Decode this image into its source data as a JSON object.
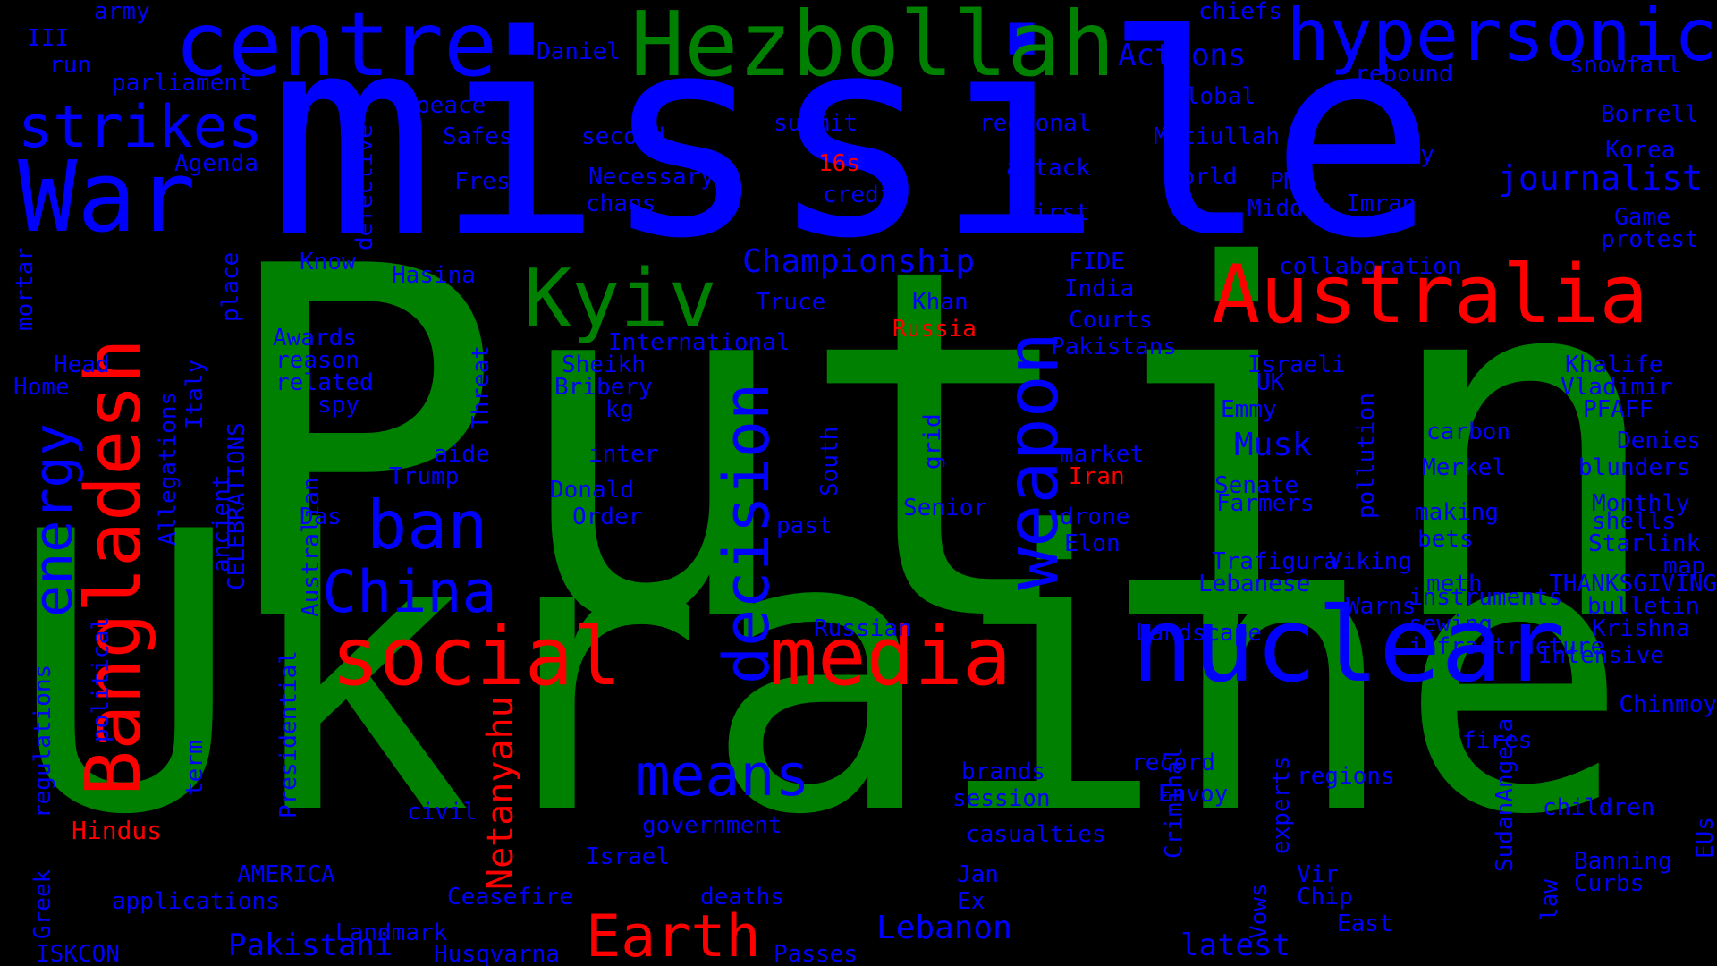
{
  "colors": {
    "blue": "#0000ff",
    "green": "#008000",
    "red": "#ff0000",
    "background": "#000000"
  },
  "words": [
    {
      "text": "Putin",
      "color": "green"
    },
    {
      "text": "Ukraine",
      "color": "green"
    },
    {
      "text": "missile",
      "color": "blue"
    },
    {
      "text": "Hezbollah",
      "color": "green"
    },
    {
      "text": "centre",
      "color": "blue"
    },
    {
      "text": "hypersonic",
      "color": "blue"
    },
    {
      "text": "War",
      "color": "blue"
    },
    {
      "text": "strikes",
      "color": "blue"
    },
    {
      "text": "Bangladesh",
      "color": "red"
    },
    {
      "text": "energy",
      "color": "blue"
    },
    {
      "text": "Kyiv",
      "color": "green"
    },
    {
      "text": "Australia",
      "color": "red"
    },
    {
      "text": "nuclear",
      "color": "blue"
    },
    {
      "text": "social",
      "color": "red"
    },
    {
      "text": "media",
      "color": "red"
    },
    {
      "text": "weapon",
      "color": "blue"
    },
    {
      "text": "decision",
      "color": "blue"
    },
    {
      "text": "ban",
      "color": "blue"
    },
    {
      "text": "China",
      "color": "blue"
    },
    {
      "text": "means",
      "color": "blue"
    },
    {
      "text": "Earth",
      "color": "red"
    },
    {
      "text": "Netanyahu",
      "color": "red"
    },
    {
      "text": "Championship",
      "color": "blue"
    },
    {
      "text": "journalist",
      "color": "blue"
    },
    {
      "text": "Actions",
      "color": "blue"
    },
    {
      "text": "Lebanon",
      "color": "blue"
    },
    {
      "text": "Pakistani",
      "color": "blue"
    },
    {
      "text": "latest",
      "color": "blue"
    },
    {
      "text": "Musk",
      "color": "blue"
    },
    {
      "text": "Hindus",
      "color": "red"
    },
    {
      "text": "Russia",
      "color": "red"
    },
    {
      "text": "Iran",
      "color": "red"
    },
    {
      "text": "16s",
      "color": "red"
    },
    {
      "text": "army",
      "color": "blue"
    },
    {
      "text": "III",
      "color": "blue"
    },
    {
      "text": "run",
      "color": "blue"
    },
    {
      "text": "parliament",
      "color": "blue"
    },
    {
      "text": "Daniel",
      "color": "blue"
    },
    {
      "text": "peace",
      "color": "blue"
    },
    {
      "text": "Safest",
      "color": "blue"
    },
    {
      "text": "second",
      "color": "blue"
    },
    {
      "text": "summit",
      "color": "blue"
    },
    {
      "text": "regional",
      "color": "blue"
    },
    {
      "text": "Matiullah",
      "color": "blue"
    },
    {
      "text": "chiefs",
      "color": "blue"
    },
    {
      "text": "global",
      "color": "blue"
    },
    {
      "text": "rebound",
      "color": "blue"
    },
    {
      "text": "snowfall",
      "color": "blue"
    },
    {
      "text": "Borrell",
      "color": "blue"
    },
    {
      "text": "Korea",
      "color": "blue"
    },
    {
      "text": "family",
      "color": "blue"
    },
    {
      "text": "Agenda",
      "color": "blue"
    },
    {
      "text": "Fresh",
      "color": "blue"
    },
    {
      "text": "Necessary",
      "color": "blue"
    },
    {
      "text": "chaos",
      "color": "blue"
    },
    {
      "text": "credit",
      "color": "blue"
    },
    {
      "text": "attack",
      "color": "blue"
    },
    {
      "text": "world",
      "color": "blue"
    },
    {
      "text": "PM",
      "color": "blue"
    },
    {
      "text": "Middle",
      "color": "blue"
    },
    {
      "text": "Imran",
      "color": "blue"
    },
    {
      "text": "first",
      "color": "blue"
    },
    {
      "text": "Game",
      "color": "blue"
    },
    {
      "text": "protest",
      "color": "blue"
    },
    {
      "text": "defective",
      "color": "blue"
    },
    {
      "text": "Know",
      "color": "blue"
    },
    {
      "text": "Hasina",
      "color": "blue"
    },
    {
      "text": "place",
      "color": "blue"
    },
    {
      "text": "FIDE",
      "color": "blue"
    },
    {
      "text": "India",
      "color": "blue"
    },
    {
      "text": "collaboration",
      "color": "blue"
    },
    {
      "text": "mortar",
      "color": "blue"
    },
    {
      "text": "Truce",
      "color": "blue"
    },
    {
      "text": "Khan",
      "color": "blue"
    },
    {
      "text": "Courts",
      "color": "blue"
    },
    {
      "text": "Awards",
      "color": "blue"
    },
    {
      "text": "reason",
      "color": "blue"
    },
    {
      "text": "related",
      "color": "blue"
    },
    {
      "text": "spy",
      "color": "blue"
    },
    {
      "text": "International",
      "color": "blue"
    },
    {
      "text": "Sheikh",
      "color": "blue"
    },
    {
      "text": "Bribery",
      "color": "blue"
    },
    {
      "text": "kg",
      "color": "blue"
    },
    {
      "text": "Pakistans",
      "color": "blue"
    },
    {
      "text": "Israeli",
      "color": "blue"
    },
    {
      "text": "UK",
      "color": "blue"
    },
    {
      "text": "Emmy",
      "color": "blue"
    },
    {
      "text": "Khalife",
      "color": "blue"
    },
    {
      "text": "Vladimir",
      "color": "blue"
    },
    {
      "text": "PFAFF",
      "color": "blue"
    },
    {
      "text": "Head",
      "color": "blue"
    },
    {
      "text": "Home",
      "color": "blue"
    },
    {
      "text": "Italy",
      "color": "blue"
    },
    {
      "text": "Threat",
      "color": "blue"
    },
    {
      "text": "aide",
      "color": "blue"
    },
    {
      "text": "inter",
      "color": "blue"
    },
    {
      "text": "South",
      "color": "blue"
    },
    {
      "text": "grid",
      "color": "blue"
    },
    {
      "text": "market",
      "color": "blue"
    },
    {
      "text": "carbon",
      "color": "blue"
    },
    {
      "text": "Denies",
      "color": "blue"
    },
    {
      "text": "Merkel",
      "color": "blue"
    },
    {
      "text": "blunders",
      "color": "blue"
    },
    {
      "text": "Trump",
      "color": "blue"
    },
    {
      "text": "Donald",
      "color": "blue"
    },
    {
      "text": "Order",
      "color": "blue"
    },
    {
      "text": "Senate",
      "color": "blue"
    },
    {
      "text": "pollution",
      "color": "blue"
    },
    {
      "text": "Monthly",
      "color": "blue"
    },
    {
      "text": "Allegations",
      "color": "blue"
    },
    {
      "text": "ancient",
      "color": "blue"
    },
    {
      "text": "CELEBRATIONS",
      "color": "blue"
    },
    {
      "text": "Das",
      "color": "blue"
    },
    {
      "text": "past",
      "color": "blue"
    },
    {
      "text": "Senior",
      "color": "blue"
    },
    {
      "text": "drone",
      "color": "blue"
    },
    {
      "text": "Farmers",
      "color": "blue"
    },
    {
      "text": "making",
      "color": "blue"
    },
    {
      "text": "shells",
      "color": "blue"
    },
    {
      "text": "Elon",
      "color": "blue"
    },
    {
      "text": "Trafigura",
      "color": "blue"
    },
    {
      "text": "bets",
      "color": "blue"
    },
    {
      "text": "Starlink",
      "color": "blue"
    },
    {
      "text": "Viking",
      "color": "blue"
    },
    {
      "text": "map",
      "color": "blue"
    },
    {
      "text": "Lebanese",
      "color": "blue"
    },
    {
      "text": "THANKSGIVING",
      "color": "blue"
    },
    {
      "text": "meth",
      "color": "blue"
    },
    {
      "text": "Warns",
      "color": "blue"
    },
    {
      "text": "bulletin",
      "color": "blue"
    },
    {
      "text": "Australian",
      "color": "blue"
    },
    {
      "text": "Russian",
      "color": "blue"
    },
    {
      "text": "instruments",
      "color": "blue"
    },
    {
      "text": "sewing",
      "color": "blue"
    },
    {
      "text": "Krishna",
      "color": "blue"
    },
    {
      "text": "Landscape",
      "color": "blue"
    },
    {
      "text": "infrastructure",
      "color": "blue"
    },
    {
      "text": "Intensive",
      "color": "blue"
    },
    {
      "text": "political",
      "color": "blue"
    },
    {
      "text": "regulations",
      "color": "blue"
    },
    {
      "text": "Greek",
      "color": "blue"
    },
    {
      "text": "term",
      "color": "blue"
    },
    {
      "text": "Presidential",
      "color": "blue"
    },
    {
      "text": "Chinmoy",
      "color": "blue"
    },
    {
      "text": "fires",
      "color": "blue"
    },
    {
      "text": "EUs",
      "color": "blue"
    },
    {
      "text": "brands",
      "color": "blue"
    },
    {
      "text": "record",
      "color": "blue"
    },
    {
      "text": "regions",
      "color": "blue"
    },
    {
      "text": "Envoy",
      "color": "blue"
    },
    {
      "text": "children",
      "color": "blue"
    },
    {
      "text": "session",
      "color": "blue"
    },
    {
      "text": "civil",
      "color": "blue"
    },
    {
      "text": "government",
      "color": "blue"
    },
    {
      "text": "casualties",
      "color": "blue"
    },
    {
      "text": "Criminal",
      "color": "blue"
    },
    {
      "text": "experts",
      "color": "blue"
    },
    {
      "text": "SudanAngela",
      "color": "blue"
    },
    {
      "text": "law",
      "color": "blue"
    },
    {
      "text": "Banning",
      "color": "blue"
    },
    {
      "text": "Israel",
      "color": "blue"
    },
    {
      "text": "AMERICA",
      "color": "blue"
    },
    {
      "text": "Jan",
      "color": "blue"
    },
    {
      "text": "Vir",
      "color": "blue"
    },
    {
      "text": "Curbs",
      "color": "blue"
    },
    {
      "text": "Ceasefire",
      "color": "blue"
    },
    {
      "text": "deaths",
      "color": "blue"
    },
    {
      "text": "Ex",
      "color": "blue"
    },
    {
      "text": "Vows",
      "color": "blue"
    },
    {
      "text": "Chip",
      "color": "blue"
    },
    {
      "text": "applications",
      "color": "blue"
    },
    {
      "text": "Landmark",
      "color": "blue"
    },
    {
      "text": "East",
      "color": "blue"
    },
    {
      "text": "ISKCON",
      "color": "blue"
    },
    {
      "text": "Husqvarna",
      "color": "blue"
    },
    {
      "text": "Passes",
      "color": "blue"
    }
  ]
}
